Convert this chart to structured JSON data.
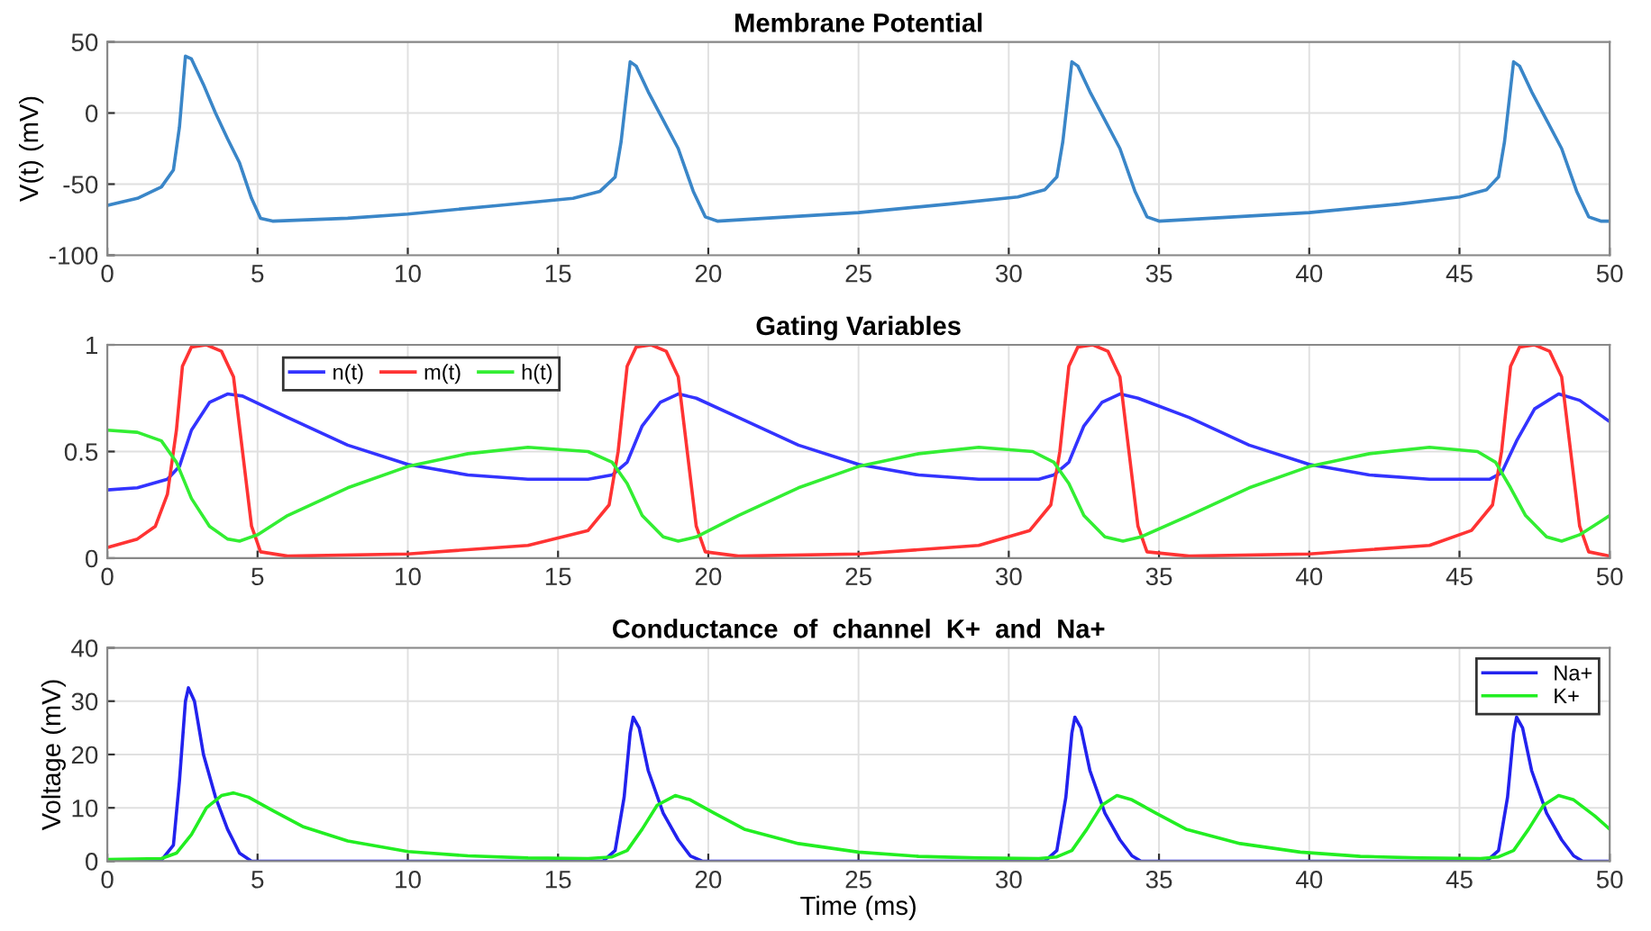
{
  "chart_data": [
    {
      "type": "line",
      "title": "Membrane Potential",
      "ylabel": "V(t) (mV)",
      "xlim": [
        0,
        50
      ],
      "ylim": [
        -100,
        50
      ],
      "xticks": [
        0,
        5,
        10,
        15,
        20,
        25,
        30,
        35,
        40,
        45,
        50
      ],
      "yticks": [
        -100,
        -50,
        0,
        50
      ],
      "grid": true,
      "legend": false,
      "series": [
        {
          "color": "#3a86c8",
          "x": [
            0,
            1,
            1.8,
            2.2,
            2.4,
            2.6,
            2.8,
            3.2,
            3.6,
            4.0,
            4.4,
            4.8,
            5.1,
            5.5,
            8,
            10,
            13,
            15.5,
            16.4,
            16.9,
            17.1,
            17.4,
            17.6,
            18.0,
            18.5,
            19.0,
            19.5,
            19.9,
            20.3,
            25,
            28,
            30.3,
            31.2,
            31.6,
            31.8,
            32.1,
            32.3,
            32.7,
            33.2,
            33.7,
            34.2,
            34.6,
            35,
            40,
            43,
            45,
            45.9,
            46.3,
            46.5,
            46.8,
            47.0,
            47.4,
            47.9,
            48.4,
            48.9,
            49.3,
            49.7,
            50
          ],
          "values": [
            -65,
            -60,
            -52,
            -40,
            -10,
            40,
            38,
            20,
            0,
            -18,
            -35,
            -60,
            -74,
            -76,
            -74,
            -71,
            -65,
            -60,
            -55,
            -45,
            -20,
            36,
            33,
            15,
            -5,
            -25,
            -55,
            -73,
            -76,
            -70,
            -64,
            -59,
            -54,
            -45,
            -20,
            36,
            33,
            15,
            -5,
            -25,
            -55,
            -73,
            -76,
            -70,
            -64,
            -59,
            -54,
            -45,
            -20,
            36,
            33,
            15,
            -5,
            -25,
            -55,
            -73,
            -76,
            -76
          ]
        }
      ]
    },
    {
      "type": "line",
      "title": "Gating Variables",
      "xlim": [
        0,
        50
      ],
      "ylim": [
        0,
        1
      ],
      "xticks": [
        0,
        5,
        10,
        15,
        20,
        25,
        30,
        35,
        40,
        45,
        50
      ],
      "yticks": [
        0,
        0.5,
        1
      ],
      "grid": true,
      "legend": "top left",
      "series": [
        {
          "name": "n(t)",
          "color": "#3333ff",
          "x": [
            0,
            1,
            2,
            2.4,
            2.8,
            3.4,
            4,
            4.5,
            6,
            8,
            10,
            12,
            14,
            16,
            16.8,
            17.3,
            17.8,
            18.4,
            19,
            19.6,
            21,
            23,
            25,
            27,
            29,
            31,
            31.5,
            32,
            32.5,
            33.1,
            33.7,
            34.3,
            36,
            38,
            40,
            42,
            44,
            46,
            46.4,
            46.9,
            47.5,
            48.3,
            49,
            50
          ],
          "values": [
            0.32,
            0.33,
            0.37,
            0.43,
            0.6,
            0.73,
            0.77,
            0.76,
            0.66,
            0.53,
            0.44,
            0.39,
            0.37,
            0.37,
            0.39,
            0.45,
            0.62,
            0.73,
            0.77,
            0.75,
            0.66,
            0.53,
            0.44,
            0.39,
            0.37,
            0.37,
            0.39,
            0.45,
            0.62,
            0.73,
            0.77,
            0.75,
            0.66,
            0.53,
            0.44,
            0.39,
            0.37,
            0.37,
            0.4,
            0.55,
            0.7,
            0.77,
            0.74,
            0.64
          ]
        },
        {
          "name": "m(t)",
          "color": "#ff3333",
          "x": [
            0,
            1,
            1.6,
            2.0,
            2.3,
            2.5,
            2.8,
            3.3,
            3.8,
            4.2,
            4.5,
            4.8,
            5.1,
            6,
            10,
            14,
            16,
            16.7,
            17.0,
            17.3,
            17.6,
            18.1,
            18.6,
            19.0,
            19.3,
            19.6,
            19.9,
            21,
            25,
            29,
            30.7,
            31.4,
            31.7,
            32.0,
            32.3,
            32.8,
            33.3,
            33.7,
            34.0,
            34.3,
            34.6,
            36,
            40,
            44,
            45.4,
            46.1,
            46.4,
            46.7,
            47.0,
            47.5,
            48.0,
            48.4,
            48.7,
            49.0,
            49.3,
            50
          ],
          "values": [
            0.05,
            0.09,
            0.15,
            0.3,
            0.6,
            0.9,
            0.99,
            1.0,
            0.97,
            0.85,
            0.5,
            0.15,
            0.03,
            0.01,
            0.02,
            0.06,
            0.13,
            0.25,
            0.5,
            0.9,
            0.99,
            1.0,
            0.97,
            0.85,
            0.5,
            0.15,
            0.03,
            0.01,
            0.02,
            0.06,
            0.13,
            0.25,
            0.5,
            0.9,
            0.99,
            1.0,
            0.97,
            0.85,
            0.5,
            0.15,
            0.03,
            0.01,
            0.02,
            0.06,
            0.13,
            0.25,
            0.5,
            0.9,
            0.99,
            1.0,
            0.97,
            0.85,
            0.5,
            0.15,
            0.03,
            0.01
          ]
        },
        {
          "name": "h(t)",
          "color": "#33ee33",
          "x": [
            0,
            1,
            1.8,
            2.3,
            2.8,
            3.4,
            4,
            4.4,
            5,
            6,
            8,
            10,
            12,
            14,
            16,
            16.8,
            17.3,
            17.8,
            18.5,
            19,
            19.6,
            21,
            23,
            25,
            27,
            29,
            30.8,
            31.5,
            32,
            32.5,
            33.2,
            33.8,
            34.4,
            36,
            38,
            40,
            42,
            44,
            45.6,
            46.2,
            46.7,
            47.2,
            47.9,
            48.4,
            49,
            50
          ],
          "values": [
            0.6,
            0.59,
            0.55,
            0.45,
            0.28,
            0.15,
            0.09,
            0.08,
            0.11,
            0.2,
            0.33,
            0.43,
            0.49,
            0.52,
            0.5,
            0.45,
            0.35,
            0.2,
            0.1,
            0.08,
            0.1,
            0.2,
            0.33,
            0.43,
            0.49,
            0.52,
            0.5,
            0.45,
            0.35,
            0.2,
            0.1,
            0.08,
            0.1,
            0.2,
            0.33,
            0.43,
            0.49,
            0.52,
            0.5,
            0.45,
            0.33,
            0.2,
            0.1,
            0.08,
            0.11,
            0.2
          ]
        }
      ]
    },
    {
      "type": "line",
      "title": "Conductance  of  channel  K+  and  Na+",
      "xlabel": "Time (ms)",
      "ylabel": "Voltage (mV)",
      "xlim": [
        0,
        50
      ],
      "ylim": [
        0,
        40
      ],
      "xticks": [
        0,
        5,
        10,
        15,
        20,
        25,
        30,
        35,
        40,
        45,
        50
      ],
      "yticks": [
        0,
        10,
        20,
        30,
        40
      ],
      "grid": true,
      "legend": "top right",
      "series": [
        {
          "name": "Na+",
          "color": "#2222ee",
          "x": [
            0,
            1.8,
            2.2,
            2.4,
            2.6,
            2.7,
            2.9,
            3.2,
            3.6,
            4.0,
            4.4,
            4.8,
            16.5,
            16.9,
            17.2,
            17.4,
            17.5,
            17.7,
            18.0,
            18.5,
            19,
            19.4,
            19.8,
            31.2,
            31.6,
            31.9,
            32.1,
            32.2,
            32.4,
            32.7,
            33.2,
            33.7,
            34.1,
            34.4,
            45.9,
            46.3,
            46.6,
            46.8,
            46.9,
            47.1,
            47.4,
            47.9,
            48.4,
            48.8,
            49.1,
            50
          ],
          "values": [
            0,
            0.2,
            3,
            15,
            30,
            32.5,
            30,
            20,
            12,
            6,
            1.5,
            0,
            0,
            2,
            12,
            24,
            27,
            25,
            17,
            9,
            4,
            1,
            0,
            0,
            2,
            12,
            24,
            27,
            25,
            17,
            9,
            4,
            1,
            0,
            0,
            2,
            12,
            24,
            27,
            25,
            17,
            9,
            4,
            1,
            0,
            0
          ]
        },
        {
          "name": "K+",
          "color": "#22ee22",
          "x": [
            0,
            1.8,
            2.3,
            2.8,
            3.3,
            3.8,
            4.2,
            4.7,
            5.5,
            6.5,
            8,
            10,
            12,
            14,
            16,
            16.8,
            17.3,
            17.8,
            18.3,
            18.9,
            19.4,
            20.2,
            21.2,
            23,
            25,
            27,
            29,
            31,
            31.6,
            32.1,
            32.6,
            33.1,
            33.6,
            34.1,
            34.9,
            35.9,
            37.7,
            39.7,
            41.7,
            43.7,
            45.7,
            46.3,
            46.8,
            47.3,
            47.8,
            48.3,
            48.8,
            49.5,
            50
          ],
          "values": [
            0.3,
            0.5,
            1.5,
            5,
            10,
            12.3,
            12.8,
            12,
            9.5,
            6.5,
            3.8,
            1.8,
            1,
            0.6,
            0.5,
            0.8,
            2,
            6,
            10.5,
            12.3,
            11.5,
            9,
            6,
            3.3,
            1.7,
            0.9,
            0.6,
            0.5,
            0.8,
            2,
            6,
            10.5,
            12.3,
            11.5,
            9,
            6,
            3.3,
            1.7,
            0.9,
            0.6,
            0.5,
            0.8,
            2,
            6,
            10.5,
            12.3,
            11.5,
            8.5,
            6
          ]
        }
      ]
    }
  ]
}
